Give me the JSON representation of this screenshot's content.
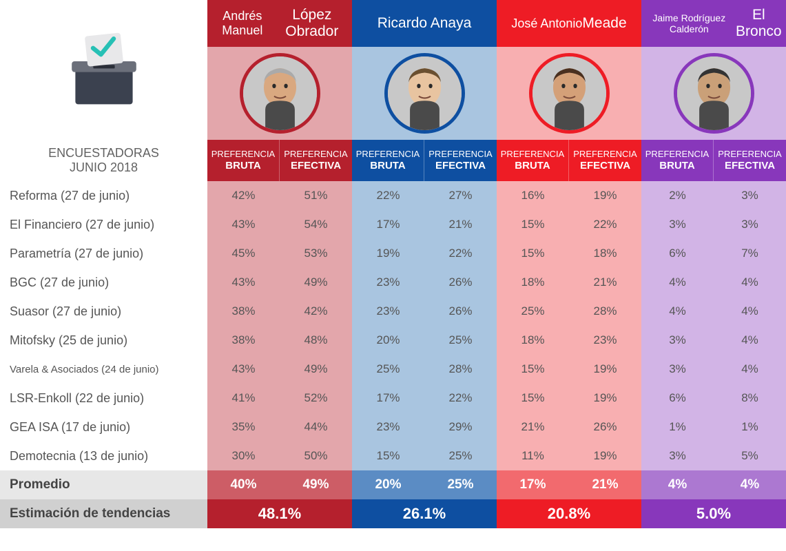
{
  "title": "ENCUESTADORAS",
  "subtitle": "JUNIO 2018",
  "pref_label_top": "PREFERENCIA",
  "pref_label_bruta": "BRUTA",
  "pref_label_efectiva": "EFECTIVA",
  "promedio_label": "Promedio",
  "tendencias_label": "Estimación de tendencias",
  "colors": {
    "amlo_header": "#b5202d",
    "amlo_light": "#e3a6ab",
    "amlo_mid": "#cd5d66",
    "amlo_dark": "#b5202d",
    "anaya_header": "#0e4fa1",
    "anaya_light": "#a9c5e0",
    "anaya_mid": "#5b8cc4",
    "anaya_dark": "#0e4fa1",
    "meade_header": "#ee1c25",
    "meade_light": "#f8afb1",
    "meade_mid": "#f26a6e",
    "meade_dark": "#ee1c25",
    "bronco_header": "#8837bb",
    "bronco_light": "#d2b4e6",
    "bronco_mid": "#ac78d1",
    "bronco_dark": "#8837bb"
  },
  "candidates": [
    {
      "name_line1": "Andrés Manuel",
      "name_line2": "López Obrador",
      "key": "amlo"
    },
    {
      "name_line1": "",
      "name_line2": "Ricardo Anaya",
      "key": "anaya"
    },
    {
      "name_line1": "José Antonio",
      "name_line2": "Meade",
      "key": "meade"
    },
    {
      "name_line1": "Jaime Rodríguez Calderón",
      "name_line2": "El Bronco",
      "key": "bronco"
    }
  ],
  "pollsters": [
    {
      "name": "Reforma (27 de junio)",
      "small": false
    },
    {
      "name": "El Financiero (27 de junio)",
      "small": false
    },
    {
      "name": "Parametría (27 de junio)",
      "small": false
    },
    {
      "name": "BGC (27 de junio)",
      "small": false
    },
    {
      "name": "Suasor (27 de junio)",
      "small": false
    },
    {
      "name": "Mitofsky (25 de junio)",
      "small": false
    },
    {
      "name": "Varela & Asociados (24 de junio)",
      "small": true
    },
    {
      "name": "LSR-Enkoll (22 de junio)",
      "small": false
    },
    {
      "name": "GEA ISA (17 de junio)",
      "small": false
    },
    {
      "name": "Demotecnia (13 de junio)",
      "small": false
    }
  ],
  "data": {
    "amlo": [
      [
        "42%",
        "51%"
      ],
      [
        "43%",
        "54%"
      ],
      [
        "45%",
        "53%"
      ],
      [
        "43%",
        "49%"
      ],
      [
        "38%",
        "42%"
      ],
      [
        "38%",
        "48%"
      ],
      [
        "43%",
        "49%"
      ],
      [
        "41%",
        "52%"
      ],
      [
        "35%",
        "44%"
      ],
      [
        "30%",
        "50%"
      ]
    ],
    "anaya": [
      [
        "22%",
        "27%"
      ],
      [
        "17%",
        "21%"
      ],
      [
        "19%",
        "22%"
      ],
      [
        "23%",
        "26%"
      ],
      [
        "23%",
        "26%"
      ],
      [
        "20%",
        "25%"
      ],
      [
        "25%",
        "28%"
      ],
      [
        "17%",
        "22%"
      ],
      [
        "23%",
        "29%"
      ],
      [
        "15%",
        "25%"
      ]
    ],
    "meade": [
      [
        "16%",
        "19%"
      ],
      [
        "15%",
        "22%"
      ],
      [
        "15%",
        "18%"
      ],
      [
        "18%",
        "21%"
      ],
      [
        "25%",
        "28%"
      ],
      [
        "18%",
        "23%"
      ],
      [
        "15%",
        "19%"
      ],
      [
        "15%",
        "19%"
      ],
      [
        "21%",
        "26%"
      ],
      [
        "11%",
        "19%"
      ]
    ],
    "bronco": [
      [
        "2%",
        "3%"
      ],
      [
        "3%",
        "3%"
      ],
      [
        "6%",
        "7%"
      ],
      [
        "4%",
        "4%"
      ],
      [
        "4%",
        "4%"
      ],
      [
        "3%",
        "4%"
      ],
      [
        "3%",
        "4%"
      ],
      [
        "6%",
        "8%"
      ],
      [
        "1%",
        "1%"
      ],
      [
        "3%",
        "5%"
      ]
    ]
  },
  "promedio": {
    "amlo": [
      "40%",
      "49%"
    ],
    "anaya": [
      "20%",
      "25%"
    ],
    "meade": [
      "17%",
      "21%"
    ],
    "bronco": [
      "4%",
      "4%"
    ]
  },
  "tendencias": {
    "amlo": "48.1%",
    "anaya": "26.1%",
    "meade": "20.8%",
    "bronco": "5.0%"
  }
}
